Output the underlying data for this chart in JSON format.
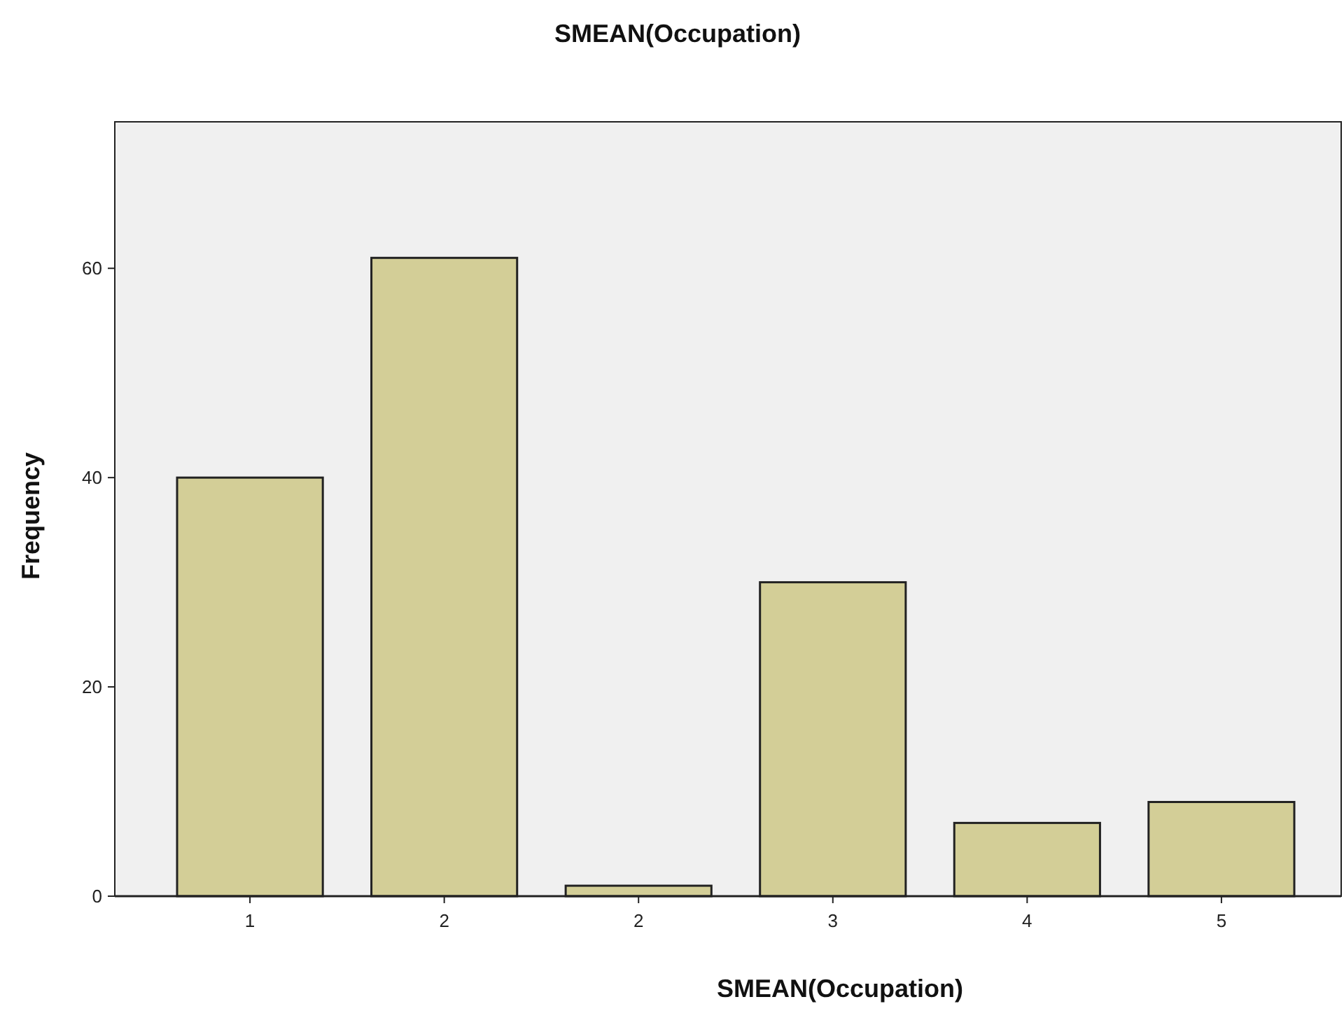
{
  "chart_data": {
    "type": "bar",
    "title": "SMEAN(Occupation)",
    "xlabel": "SMEAN(Occupation)",
    "ylabel": "Frequency",
    "categories": [
      "1",
      "2",
      "2",
      "3",
      "4",
      "5"
    ],
    "values": [
      40,
      61,
      1,
      30,
      7,
      9
    ],
    "color": "#d3ce97",
    "ylim": [
      0,
      74
    ],
    "yticks": [
      0,
      20,
      40,
      60
    ],
    "grid": false
  }
}
